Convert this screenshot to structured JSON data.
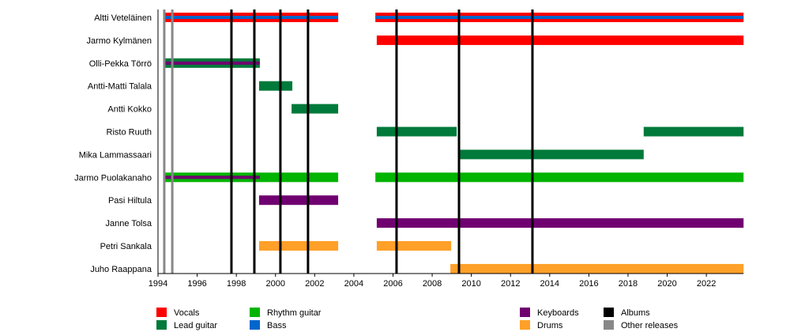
{
  "chart_data": {
    "type": "timeline",
    "xlim": [
      1994,
      2023.9
    ],
    "x_ticks": [
      1994,
      1996,
      1998,
      2000,
      2002,
      2004,
      2006,
      2008,
      2010,
      2012,
      2014,
      2016,
      2018,
      2020,
      2022
    ],
    "roles": {
      "vocals": {
        "label": "Vocals",
        "color": "#ff0000"
      },
      "lead_guitar": {
        "label": "Lead guitar",
        "color": "#007a3a"
      },
      "rhythm_guitar": {
        "label": "Rhythm guitar",
        "color": "#00b400"
      },
      "bass": {
        "label": "Bass",
        "color": "#0066cc"
      },
      "keyboards": {
        "label": "Keyboards",
        "color": "#700070"
      },
      "drums": {
        "label": "Drums",
        "color": "#ffa028"
      },
      "albums": {
        "label": "Albums",
        "color": "#000000"
      },
      "other_releases": {
        "label": "Other releases",
        "color": "#888888"
      }
    },
    "legend": [
      [
        "vocals",
        "lead_guitar"
      ],
      [
        "rhythm_guitar",
        "bass"
      ],
      [
        "keyboards",
        "drums"
      ],
      [
        "albums",
        "other_releases"
      ]
    ],
    "members": [
      {
        "name": "Altti Veteläinen",
        "bars": [
          {
            "role": "vocals",
            "from": 1994.32,
            "to": 2003.2,
            "stripe": "bass"
          },
          {
            "role": "vocals",
            "from": 2005.1,
            "to": 2023.9,
            "stripe": "bass"
          }
        ]
      },
      {
        "name": "Jarmo Kylmänen",
        "bars": [
          {
            "role": "vocals",
            "from": 2005.17,
            "to": 2023.9
          }
        ]
      },
      {
        "name": "Olli-Pekka Törrö",
        "bars": [
          {
            "role": "lead_guitar",
            "from": 1994.32,
            "to": 1999.2,
            "stripe": "keyboards"
          }
        ]
      },
      {
        "name": "Antti-Matti Talala",
        "bars": [
          {
            "role": "lead_guitar",
            "from": 1999.16,
            "to": 2000.86
          }
        ]
      },
      {
        "name": "Antti Kokko",
        "bars": [
          {
            "role": "lead_guitar",
            "from": 2000.82,
            "to": 2003.2
          }
        ]
      },
      {
        "name": "Risto Ruuth",
        "bars": [
          {
            "role": "lead_guitar",
            "from": 2005.17,
            "to": 2009.25
          },
          {
            "role": "lead_guitar",
            "from": 2018.8,
            "to": 2023.9
          }
        ]
      },
      {
        "name": "Mika Lammassaari",
        "bars": [
          {
            "role": "lead_guitar",
            "from": 2009.37,
            "to": 2018.8
          }
        ]
      },
      {
        "name": "Jarmo Puolakanaho",
        "bars": [
          {
            "role": "rhythm_guitar",
            "from": 1994.32,
            "to": 2003.2
          },
          {
            "role": "rhythm_guitar",
            "from": 2005.1,
            "to": 2023.9
          },
          {
            "role": "keyboards",
            "from": 1994.32,
            "to": 1999.2,
            "thin": true
          }
        ]
      },
      {
        "name": "Pasi Hiltula",
        "bars": [
          {
            "role": "keyboards",
            "from": 1999.16,
            "to": 2003.2
          }
        ]
      },
      {
        "name": "Janne Tolsa",
        "bars": [
          {
            "role": "keyboards",
            "from": 2005.17,
            "to": 2023.9
          }
        ]
      },
      {
        "name": "Petri Sankala",
        "bars": [
          {
            "role": "drums",
            "from": 1999.16,
            "to": 2003.2
          },
          {
            "role": "drums",
            "from": 2005.17,
            "to": 2008.97
          }
        ]
      },
      {
        "name": "Juho Raappana",
        "bars": [
          {
            "role": "drums",
            "from": 2008.93,
            "to": 2023.9
          }
        ]
      }
    ],
    "albums": [
      1997.75,
      1998.92,
      2000.25,
      2001.66,
      2006.18,
      2009.37,
      2013.12
    ],
    "other_releases": [
      1994.32,
      1994.73
    ]
  }
}
